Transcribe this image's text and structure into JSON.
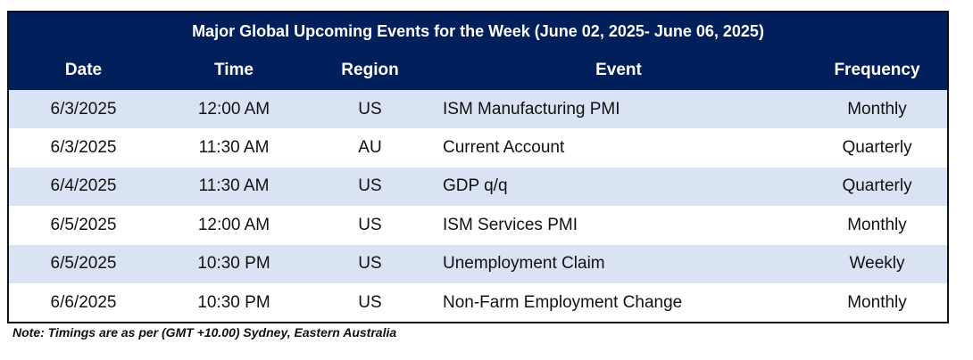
{
  "title": "Major Global Upcoming Events for the Week (June  02, 2025- June 06, 2025)",
  "headers": [
    "Date",
    "Time",
    "Region",
    "Event",
    "Frequency"
  ],
  "rows": [
    [
      "6/3/2025",
      "12:00 AM",
      "US",
      "ISM Manufacturing PMI",
      "Monthly"
    ],
    [
      "6/3/2025",
      "11:30 AM",
      "AU",
      "Current Account",
      "Quarterly"
    ],
    [
      "6/4/2025",
      "11:30 AM",
      "US",
      "GDP q/q",
      "Quarterly"
    ],
    [
      "6/5/2025",
      "12:00 AM",
      "US",
      "ISM Services PMI",
      "Monthly"
    ],
    [
      "6/5/2025",
      "10:30 PM",
      "US",
      "Unemployment Claim",
      "Weekly"
    ],
    [
      "6/6/2025",
      "10:30 PM",
      "US",
      "Non-Farm Employment Change",
      "Monthly"
    ]
  ],
  "note": "Note: Timings are as per (GMT +10.00) Sydney, Eastern Australia",
  "colors": {
    "header": "#001f5b",
    "stripe": "#dae3f3"
  }
}
